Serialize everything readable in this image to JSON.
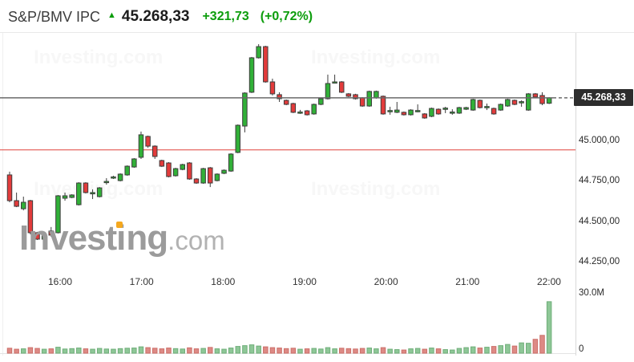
{
  "header": {
    "symbol": "S&P/BMV IPC",
    "arrow_up_glyph": "▲",
    "last_price": "45.268,33",
    "change": "+321,73",
    "change_percent": "(+0,72%)"
  },
  "price_badge": "45.268,33",
  "watermark": {
    "part1": "Invest",
    "part2": "i",
    "part3": "ng",
    "suffix": ".com",
    "tiled": "Investing.com"
  },
  "colors": {
    "up_green": "#0d9d0d",
    "candle_green": "#31b038",
    "candle_red": "#e23b3b",
    "candle_border": "#3d3d3d",
    "vol_green_fill": "#8ec797",
    "vol_green_border": "#6fae79",
    "vol_red_fill": "#dd8a85",
    "vol_red_border": "#cc6f69",
    "last_price_line": "#6a6a6a",
    "prev_close_line": "#e0433c",
    "badge_bg": "#2d2d2d"
  },
  "axes": {
    "price_labels": [
      {
        "price": 45000,
        "label": "45.000,00"
      },
      {
        "price": 44750,
        "label": "44.750,00"
      },
      {
        "price": 44500,
        "label": "44.500,00"
      },
      {
        "price": 44250,
        "label": "44.250,00"
      }
    ],
    "time_labels": [
      "16:00",
      "17:00",
      "18:00",
      "19:00",
      "20:00",
      "21:00",
      "22:00"
    ],
    "volume_labels": [
      "30.0M",
      "0"
    ]
  },
  "chart_data": {
    "type": "candlestick",
    "title": "S&P/BMV IPC intraday",
    "interval": "5m",
    "price_axis_range": [
      44187,
      45675
    ],
    "volume_axis_range_millions": [
      0,
      33
    ],
    "grid": false,
    "last_price_value": 45268.33,
    "prev_close_value": 44946.6,
    "candles_format": [
      "open",
      "high",
      "low",
      "close",
      "volume_millions"
    ],
    "candles": [
      [
        44792,
        44812,
        44623,
        44633,
        2.5
      ],
      [
        44633,
        44683,
        44593,
        44598,
        2.0
      ],
      [
        44583,
        44658,
        44573,
        44623,
        2.2
      ],
      [
        44633,
        44638,
        44425,
        44435,
        2.8
      ],
      [
        44435,
        44440,
        44390,
        44395,
        2.4
      ],
      [
        44395,
        44420,
        44388,
        44415,
        2.0
      ],
      [
        44445,
        44470,
        44410,
        44420,
        2.2
      ],
      [
        44435,
        44668,
        44430,
        44663,
        3.0
      ],
      [
        44648,
        44683,
        44633,
        44663,
        2.1
      ],
      [
        44653,
        44673,
        44648,
        44668,
        2.3
      ],
      [
        44608,
        44747,
        44603,
        44742,
        2.6
      ],
      [
        44742,
        44747,
        44678,
        44683,
        2.2
      ],
      [
        44678,
        44703,
        44643,
        44683,
        2.0
      ],
      [
        44658,
        44717,
        44653,
        44712,
        2.4
      ],
      [
        44750,
        44772,
        44732,
        44752,
        2.1
      ],
      [
        44777,
        44787,
        44767,
        44780,
        2.0
      ],
      [
        44757,
        44802,
        44752,
        44797,
        2.3
      ],
      [
        44792,
        44851,
        44787,
        44846,
        2.5
      ],
      [
        44841,
        44896,
        44836,
        44891,
        2.6
      ],
      [
        44901,
        45060,
        44891,
        45040,
        3.2
      ],
      [
        45030,
        45035,
        44960,
        44970,
        2.8
      ],
      [
        44970,
        44975,
        44891,
        44906,
        2.5
      ],
      [
        44881,
        44886,
        44841,
        44846,
        2.2
      ],
      [
        44866,
        44871,
        44777,
        44782,
        2.6
      ],
      [
        44787,
        44836,
        44782,
        44831,
        2.3
      ],
      [
        44826,
        44861,
        44821,
        44856,
        2.1
      ],
      [
        44866,
        44871,
        44762,
        44767,
        2.7
      ],
      [
        44767,
        44772,
        44737,
        44742,
        2.2
      ],
      [
        44742,
        44836,
        44737,
        44831,
        2.4
      ],
      [
        44836,
        44841,
        44717,
        44742,
        2.9
      ],
      [
        44757,
        44802,
        44752,
        44797,
        2.2
      ],
      [
        44802,
        44826,
        44797,
        44821,
        2.0
      ],
      [
        44816,
        44926,
        44811,
        44921,
        2.6
      ],
      [
        44931,
        45104,
        44926,
        45099,
        3.4
      ],
      [
        45094,
        45303,
        45055,
        45298,
        3.8
      ],
      [
        45303,
        45521,
        45298,
        45516,
        4.2
      ],
      [
        45516,
        45600,
        45511,
        45585,
        3.6
      ],
      [
        45585,
        45590,
        45362,
        45367,
        3.2
      ],
      [
        45367,
        45387,
        45283,
        45293,
        2.8
      ],
      [
        45288,
        45303,
        45243,
        45263,
        2.6
      ],
      [
        45253,
        45258,
        45223,
        45228,
        2.3
      ],
      [
        45233,
        45238,
        45174,
        45179,
        2.5
      ],
      [
        45179,
        45194,
        45169,
        45181,
        2.0
      ],
      [
        45188,
        45193,
        45159,
        45164,
        2.2
      ],
      [
        45169,
        45233,
        45164,
        45228,
        2.4
      ],
      [
        45228,
        45268,
        45223,
        45263,
        2.1
      ],
      [
        45263,
        45412,
        45258,
        45357,
        2.8
      ],
      [
        45362,
        45412,
        45357,
        45367,
        2.2
      ],
      [
        45367,
        45372,
        45298,
        45303,
        2.5
      ],
      [
        45293,
        45298,
        45273,
        45278,
        2.3
      ],
      [
        45288,
        45293,
        45258,
        45263,
        2.1
      ],
      [
        45268,
        45273,
        45213,
        45218,
        2.4
      ],
      [
        45218,
        45313,
        45213,
        45308,
        2.6
      ],
      [
        45268,
        45313,
        45263,
        45308,
        2.2
      ],
      [
        45278,
        45283,
        45164,
        45169,
        2.8
      ],
      [
        45186,
        45213,
        45164,
        45190,
        2.0
      ],
      [
        45179,
        45243,
        45174,
        45193,
        1.8
      ],
      [
        45179,
        45184,
        45159,
        45164,
        1.6
      ],
      [
        45164,
        45198,
        45159,
        45193,
        2.2
      ],
      [
        45186,
        45228,
        45179,
        45190,
        2.4
      ],
      [
        45169,
        45174,
        45139,
        45144,
        2.0
      ],
      [
        45154,
        45208,
        45149,
        45203,
        2.6
      ],
      [
        45198,
        45203,
        45164,
        45169,
        2.2
      ],
      [
        45201,
        45213,
        45174,
        45205,
        1.8
      ],
      [
        45179,
        45198,
        45164,
        45181,
        1.6
      ],
      [
        45174,
        45213,
        45169,
        45208,
        2.4
      ],
      [
        45198,
        45213,
        45193,
        45208,
        2.8
      ],
      [
        45193,
        45263,
        45188,
        45258,
        3.2
      ],
      [
        45253,
        45258,
        45203,
        45208,
        2.6
      ],
      [
        45211,
        45233,
        45193,
        45215,
        3.0
      ],
      [
        45203,
        45208,
        45164,
        45169,
        3.4
      ],
      [
        45193,
        45233,
        45188,
        45228,
        3.8
      ],
      [
        45218,
        45263,
        45213,
        45258,
        4.4
      ],
      [
        45253,
        45258,
        45223,
        45228,
        3.6
      ],
      [
        45241,
        45253,
        45213,
        45245,
        5.2
      ],
      [
        45193,
        45298,
        45188,
        45293,
        5.0
      ],
      [
        45293,
        45298,
        45268,
        45273,
        7.0
      ],
      [
        45283,
        45303,
        45223,
        45233,
        9.0
      ],
      [
        45235,
        45273,
        45230,
        45268,
        26.0
      ]
    ]
  }
}
